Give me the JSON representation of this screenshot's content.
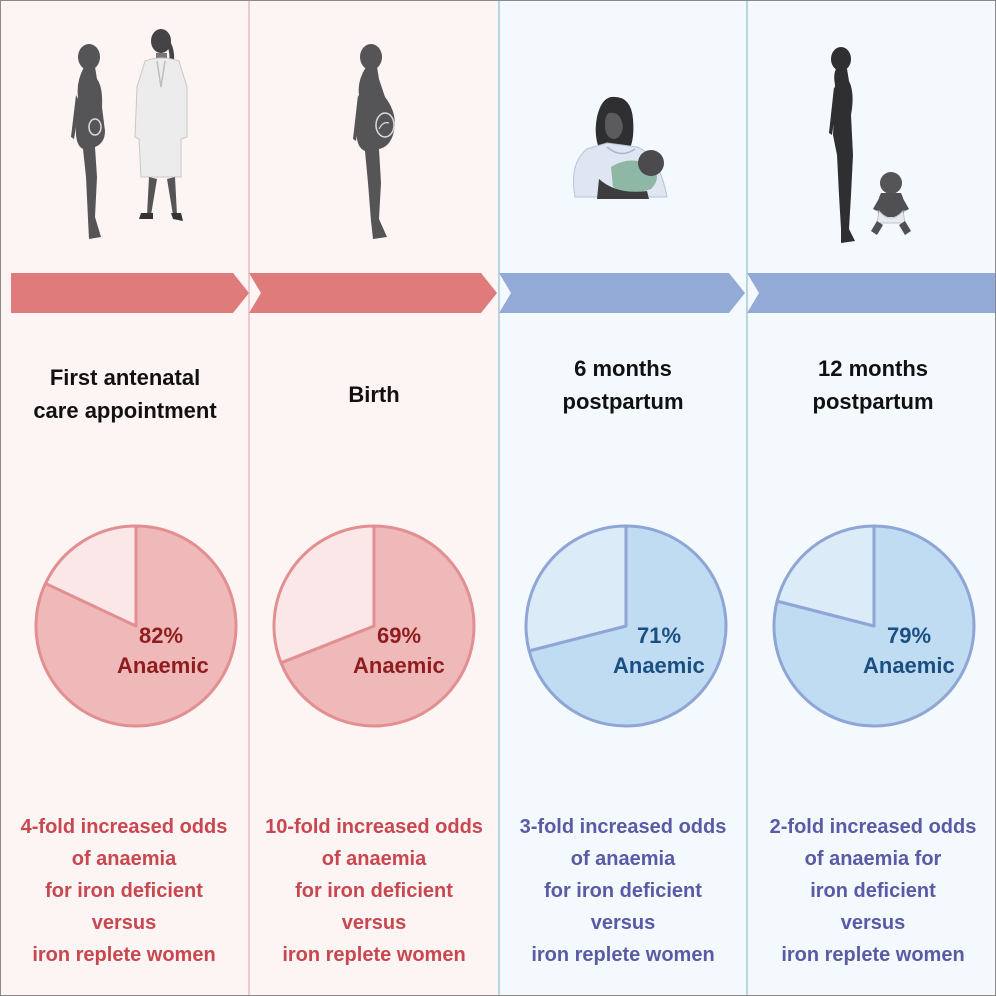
{
  "colors": {
    "pink_bg": "#fdf4f4",
    "blue_bg": "#f3f9fc",
    "pink_arrow": "#e07b7c",
    "blue_arrow": "#94aad6",
    "pink_text": "#c9474f",
    "blue_text": "#5a5aa6",
    "pink_pct": "#8f1d1e",
    "blue_pct": "#1b4f82",
    "figure": "#555557"
  },
  "stages": [
    {
      "id": "first-antenatal",
      "theme": "pink",
      "heading": [
        "First antenatal",
        "care appointment"
      ],
      "illustration": "pregnant-woman-and-doctor-icon",
      "anaemic_fraction": 0.82,
      "percent_label": "82%",
      "anaemic_label": "Anaemic",
      "odds_text": [
        "4-fold increased odds",
        "of anaemia",
        "for iron deficient",
        "versus",
        "iron replete women"
      ]
    },
    {
      "id": "birth",
      "theme": "pink",
      "heading": [
        "Birth"
      ],
      "illustration": "pregnant-woman-icon",
      "anaemic_fraction": 0.69,
      "percent_label": "69%",
      "anaemic_label": "Anaemic",
      "odds_text": [
        "10-fold increased odds",
        "of anaemia",
        "for iron deficient",
        "versus",
        "iron replete women"
      ]
    },
    {
      "id": "six-months",
      "theme": "blue",
      "heading": [
        "6 months",
        "postpartum"
      ],
      "illustration": "breastfeeding-mother-icon",
      "anaemic_fraction": 0.71,
      "percent_label": "71%",
      "anaemic_label": "Anaemic",
      "odds_text": [
        "3-fold increased odds",
        "of anaemia",
        "for iron deficient",
        "versus",
        "iron replete women"
      ]
    },
    {
      "id": "twelve-months",
      "theme": "blue",
      "heading": [
        "12 months",
        "postpartum"
      ],
      "illustration": "woman-and-toddler-icon",
      "anaemic_fraction": 0.79,
      "percent_label": "79%",
      "anaemic_label": "Anaemic",
      "odds_text": [
        "2-fold increased odds",
        "of anaemia for",
        "iron deficient",
        "versus",
        "iron replete women"
      ]
    }
  ]
}
